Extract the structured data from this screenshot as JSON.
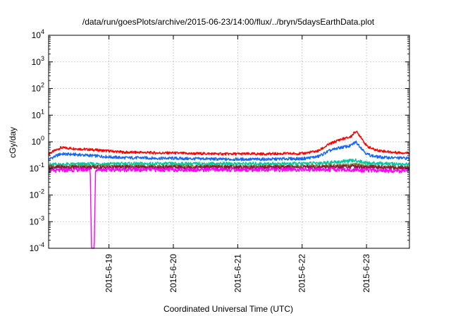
{
  "chart_data": {
    "type": "line",
    "title": "/data/run/goesPlots/archive/2015-06-23/14:00/flux/../bryn/5daysEarthData.plot",
    "xlabel": "Coordinated Universal Time (UTC)",
    "ylabel": "cGy/day",
    "yscale": "log",
    "ylim": [
      0.0001,
      10000
    ],
    "xlim": [
      "2015-06-18T01:30",
      "2015-06-23T16:00"
    ],
    "grid": true,
    "legend": "none",
    "x_ticks": [
      "2015-6-19",
      "2015-6-20",
      "2015-6-21",
      "2015-6-22",
      "2015-6-23"
    ],
    "y_ticks": [
      {
        "base": "10",
        "exp": "-4"
      },
      {
        "base": "10",
        "exp": "-3"
      },
      {
        "base": "10",
        "exp": "-2"
      },
      {
        "base": "10",
        "exp": "-1"
      },
      {
        "base": "10",
        "exp": "0"
      },
      {
        "base": "10",
        "exp": "1"
      },
      {
        "base": "10",
        "exp": "2"
      },
      {
        "base": "10",
        "exp": "3"
      },
      {
        "base": "10",
        "exp": "4"
      }
    ],
    "series": [
      {
        "color": "#ff0000",
        "x": [
          "2015-06-18T01:30",
          "2015-06-18T06:00",
          "2015-06-18T12:00",
          "2015-06-18T18:00",
          "2015-06-19T00:00",
          "2015-06-19T06:00",
          "2015-06-19T12:00",
          "2015-06-19T18:00",
          "2015-06-20T00:00",
          "2015-06-20T06:00",
          "2015-06-20T12:00",
          "2015-06-20T18:00",
          "2015-06-21T00:00",
          "2015-06-21T06:00",
          "2015-06-21T12:00",
          "2015-06-21T18:00",
          "2015-06-22T00:00",
          "2015-06-22T06:00",
          "2015-06-22T10:00",
          "2015-06-22T14:00",
          "2015-06-22T18:00",
          "2015-06-22T20:00",
          "2015-06-22T22:00",
          "2015-06-23T00:00",
          "2015-06-23T03:00",
          "2015-06-23T06:00",
          "2015-06-23T10:00",
          "2015-06-23T16:00"
        ],
        "values": [
          0.35,
          0.6,
          0.55,
          0.5,
          0.45,
          0.4,
          0.4,
          0.38,
          0.38,
          0.36,
          0.36,
          0.35,
          0.35,
          0.35,
          0.35,
          0.36,
          0.36,
          0.45,
          0.8,
          1.2,
          1.5,
          2.5,
          1.5,
          0.7,
          0.5,
          0.45,
          0.4,
          0.38
        ]
      },
      {
        "color": "#1565ff",
        "x": [
          "2015-06-18T01:30",
          "2015-06-18T06:00",
          "2015-06-18T12:00",
          "2015-06-18T18:00",
          "2015-06-19T00:00",
          "2015-06-19T06:00",
          "2015-06-19T12:00",
          "2015-06-19T18:00",
          "2015-06-20T00:00",
          "2015-06-20T06:00",
          "2015-06-20T12:00",
          "2015-06-20T18:00",
          "2015-06-21T00:00",
          "2015-06-21T06:00",
          "2015-06-21T12:00",
          "2015-06-21T18:00",
          "2015-06-22T00:00",
          "2015-06-22T06:00",
          "2015-06-22T10:00",
          "2015-06-22T14:00",
          "2015-06-22T18:00",
          "2015-06-22T20:00",
          "2015-06-22T22:00",
          "2015-06-23T00:00",
          "2015-06-23T03:00",
          "2015-06-23T06:00",
          "2015-06-23T10:00",
          "2015-06-23T16:00"
        ],
        "values": [
          0.22,
          0.35,
          0.33,
          0.3,
          0.27,
          0.25,
          0.25,
          0.24,
          0.24,
          0.23,
          0.23,
          0.22,
          0.22,
          0.22,
          0.22,
          0.23,
          0.23,
          0.28,
          0.45,
          0.6,
          0.7,
          1.0,
          0.6,
          0.35,
          0.28,
          0.26,
          0.25,
          0.24
        ]
      },
      {
        "color": "#00c8a0",
        "x": [
          "2015-06-18T01:30",
          "2015-06-19T00:00",
          "2015-06-20T00:00",
          "2015-06-21T00:00",
          "2015-06-22T00:00",
          "2015-06-22T12:00",
          "2015-06-22T20:00",
          "2015-06-23T00:00",
          "2015-06-23T16:00"
        ],
        "values": [
          0.14,
          0.15,
          0.15,
          0.15,
          0.15,
          0.17,
          0.2,
          0.16,
          0.14
        ]
      },
      {
        "color": "#7a8a3a",
        "x": [
          "2015-06-18T01:30",
          "2015-06-19T00:00",
          "2015-06-20T00:00",
          "2015-06-21T00:00",
          "2015-06-22T00:00",
          "2015-06-22T12:00",
          "2015-06-22T20:00",
          "2015-06-23T00:00",
          "2015-06-23T16:00"
        ],
        "values": [
          0.12,
          0.12,
          0.12,
          0.12,
          0.12,
          0.13,
          0.14,
          0.12,
          0.11
        ]
      },
      {
        "color": "#8b1a3a",
        "x": [
          "2015-06-18T01:30",
          "2015-06-19T00:00",
          "2015-06-20T00:00",
          "2015-06-21T00:00",
          "2015-06-22T00:00",
          "2015-06-22T12:00",
          "2015-06-22T20:00",
          "2015-06-23T00:00",
          "2015-06-23T16:00"
        ],
        "values": [
          0.11,
          0.11,
          0.11,
          0.11,
          0.11,
          0.115,
          0.12,
          0.11,
          0.105
        ]
      },
      {
        "color": "#ff00ff",
        "x": [
          "2015-06-18T01:30",
          "2015-06-18T12:00",
          "2015-06-18T17:00",
          "2015-06-18T17:30",
          "2015-06-18T18:30",
          "2015-06-18T19:00",
          "2015-06-19T00:00",
          "2015-06-20T00:00",
          "2015-06-21T00:00",
          "2015-06-22T00:00",
          "2015-06-22T12:00",
          "2015-06-23T00:00",
          "2015-06-23T16:00"
        ],
        "values": [
          0.08,
          0.09,
          0.09,
          0.0001,
          0.0001,
          0.09,
          0.09,
          0.09,
          0.09,
          0.09,
          0.09,
          0.085,
          0.08
        ]
      }
    ]
  }
}
